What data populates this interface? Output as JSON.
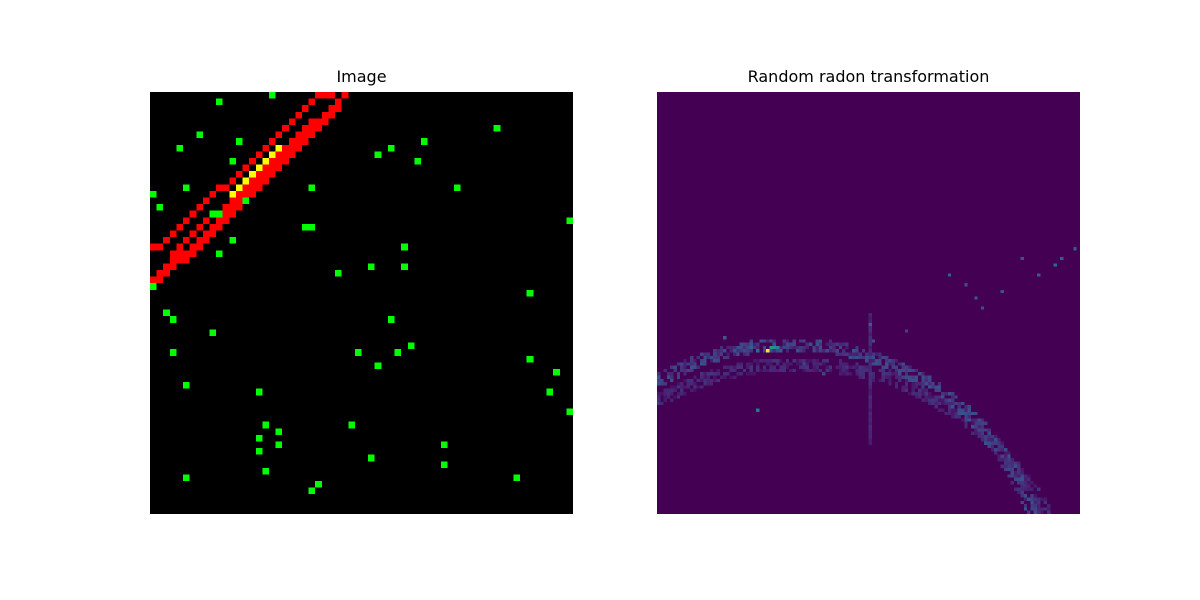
{
  "figure": {
    "titles": [
      "Image",
      "Random radon transformation"
    ]
  },
  "chart_data": [
    {
      "type": "heatmap",
      "title": "Image",
      "grid_size": [
        64,
        64
      ],
      "axes_visible": false,
      "colors": {
        "background": "#000000",
        "line_pixel": "#ff0000",
        "point_pixel": "#00ff00",
        "overlap_pixel": "#ffff00"
      },
      "line_band_1": [
        [
          0,
          28
        ],
        [
          1,
          27
        ],
        [
          2,
          26
        ],
        [
          3,
          25
        ],
        [
          4,
          24
        ],
        [
          5,
          24
        ],
        [
          6,
          23
        ],
        [
          7,
          22
        ],
        [
          8,
          21
        ],
        [
          9,
          20
        ],
        [
          10,
          19
        ],
        [
          11,
          18
        ],
        [
          12,
          17
        ],
        [
          13,
          16
        ],
        [
          14,
          15
        ],
        [
          15,
          14
        ],
        [
          16,
          13
        ],
        [
          17,
          12
        ],
        [
          18,
          11
        ],
        [
          19,
          10
        ],
        [
          20,
          9
        ],
        [
          21,
          8
        ],
        [
          22,
          7
        ],
        [
          23,
          6
        ],
        [
          24,
          5
        ],
        [
          25,
          4
        ],
        [
          26,
          3
        ],
        [
          27,
          2
        ],
        [
          28,
          1
        ],
        [
          29,
          0
        ]
      ],
      "line_band_2": [
        [
          0,
          29
        ],
        [
          1,
          28
        ],
        [
          2,
          27
        ],
        [
          3,
          26
        ],
        [
          4,
          25
        ],
        [
          5,
          25
        ],
        [
          6,
          24
        ],
        [
          7,
          23
        ],
        [
          8,
          22
        ],
        [
          9,
          21
        ],
        [
          10,
          20
        ],
        [
          11,
          19
        ],
        [
          12,
          18
        ],
        [
          13,
          17
        ],
        [
          14,
          16
        ],
        [
          15,
          15
        ],
        [
          16,
          14
        ],
        [
          17,
          13
        ],
        [
          18,
          12
        ],
        [
          19,
          11
        ],
        [
          20,
          10
        ],
        [
          21,
          9
        ],
        [
          22,
          8
        ],
        [
          23,
          7
        ],
        [
          24,
          6
        ],
        [
          25,
          5
        ],
        [
          26,
          4
        ],
        [
          27,
          3
        ],
        [
          28,
          2
        ]
      ],
      "line_band_3": [
        [
          0,
          23
        ],
        [
          1,
          23
        ],
        [
          2,
          22
        ],
        [
          3,
          21
        ],
        [
          4,
          20
        ],
        [
          5,
          19
        ],
        [
          6,
          18
        ],
        [
          7,
          17
        ],
        [
          8,
          16
        ],
        [
          9,
          15
        ],
        [
          10,
          14
        ],
        [
          11,
          14
        ],
        [
          12,
          13
        ],
        [
          13,
          12
        ],
        [
          14,
          11
        ],
        [
          15,
          10
        ],
        [
          16,
          9
        ],
        [
          17,
          8
        ],
        [
          18,
          7
        ],
        [
          19,
          6
        ],
        [
          20,
          5
        ],
        [
          21,
          4
        ],
        [
          22,
          3
        ],
        [
          23,
          2
        ],
        [
          24,
          1
        ],
        [
          25,
          0
        ],
        [
          26,
          0
        ],
        [
          27,
          0
        ]
      ],
      "line_band_4": [
        [
          3,
          24
        ],
        [
          4,
          23
        ],
        [
          5,
          22
        ],
        [
          6,
          21
        ],
        [
          7,
          20
        ],
        [
          8,
          19
        ],
        [
          9,
          18
        ],
        [
          10,
          18
        ],
        [
          11,
          17
        ],
        [
          12,
          16
        ],
        [
          13,
          15
        ],
        [
          14,
          14
        ],
        [
          15,
          13
        ],
        [
          16,
          12
        ],
        [
          17,
          11
        ],
        [
          18,
          10
        ],
        [
          19,
          9
        ],
        [
          20,
          8
        ],
        [
          21,
          7
        ],
        [
          22,
          6
        ],
        [
          23,
          5
        ],
        [
          24,
          4
        ]
      ],
      "overlap_points": [
        [
          12,
          15
        ],
        [
          13,
          14
        ],
        [
          14,
          13
        ],
        [
          15,
          12
        ],
        [
          16,
          11
        ],
        [
          17,
          10
        ],
        [
          18,
          9
        ],
        [
          19,
          8
        ]
      ],
      "points": [
        [
          0,
          29
        ],
        [
          0,
          15
        ],
        [
          1,
          17
        ],
        [
          2,
          33
        ],
        [
          3,
          34
        ],
        [
          4,
          8
        ],
        [
          3,
          39
        ],
        [
          5,
          44
        ],
        [
          5,
          58
        ],
        [
          5,
          14
        ],
        [
          7,
          6
        ],
        [
          9,
          18
        ],
        [
          9,
          36
        ],
        [
          10,
          1
        ],
        [
          10,
          24
        ],
        [
          10,
          18
        ],
        [
          12,
          10
        ],
        [
          12,
          22
        ],
        [
          13,
          7
        ],
        [
          14,
          16
        ],
        [
          15,
          12
        ],
        [
          16,
          45
        ],
        [
          16,
          52
        ],
        [
          18,
          0
        ],
        [
          16,
          54
        ],
        [
          17,
          50
        ],
        [
          17,
          57
        ],
        [
          19,
          51
        ],
        [
          19,
          53
        ],
        [
          23,
          20
        ],
        [
          24,
          14
        ],
        [
          24,
          60
        ],
        [
          24,
          20
        ],
        [
          25,
          59
        ],
        [
          28,
          27
        ],
        [
          30,
          50
        ],
        [
          31,
          39
        ],
        [
          33,
          26
        ],
        [
          33,
          55
        ],
        [
          34,
          41
        ],
        [
          36,
          34
        ],
        [
          34,
          9
        ],
        [
          37,
          39
        ],
        [
          39,
          38
        ],
        [
          36,
          8
        ],
        [
          38,
          26
        ],
        [
          38,
          23
        ],
        [
          41,
          7
        ],
        [
          40,
          10
        ],
        [
          44,
          53
        ],
        [
          44,
          56
        ],
        [
          46,
          14
        ],
        [
          52,
          5
        ],
        [
          55,
          58
        ],
        [
          57,
          30
        ],
        [
          57,
          40
        ],
        [
          60,
          45
        ],
        [
          61,
          42
        ],
        [
          63,
          48
        ],
        [
          63,
          19
        ]
      ]
    },
    {
      "type": "heatmap",
      "title": "Random radon transformation",
      "grid_size": [
        128,
        128
      ],
      "axes_visible": false,
      "colormap": "viridis",
      "background_value": 0,
      "peak": {
        "theta_index": 33,
        "rho_index": 78,
        "value": 1.0
      },
      "bright_pixels": [
        [
          34,
          77,
          0.55
        ],
        [
          35,
          77,
          0.5
        ],
        [
          36,
          77,
          0.45
        ],
        [
          30,
          78,
          0.35
        ],
        [
          28,
          77,
          0.3
        ],
        [
          37,
          78,
          0.3
        ],
        [
          20,
          74,
          0.3
        ],
        [
          30,
          96,
          0.4
        ],
        [
          64,
          70,
          0.3
        ],
        [
          65,
          75,
          0.25
        ],
        [
          88,
          55,
          0.3
        ],
        [
          93,
          58,
          0.25
        ],
        [
          96,
          62,
          0.3
        ],
        [
          110,
          50,
          0.25
        ],
        [
          115,
          55,
          0.3
        ],
        [
          120,
          52,
          0.35
        ],
        [
          122,
          50,
          0.3
        ],
        [
          126,
          47,
          0.3
        ],
        [
          98,
          65,
          0.25
        ],
        [
          104,
          60,
          0.25
        ],
        [
          44,
          82,
          0.2
        ],
        [
          50,
          85,
          0.2
        ],
        [
          75,
          72,
          0.2
        ]
      ],
      "arcs": [
        {
          "center": [
            40,
            154
          ],
          "radius": 78,
          "theta_range": [
            0,
            128
          ],
          "rho_range": [
            48,
            128
          ],
          "intensity": 0.2,
          "width": 4
        },
        {
          "center": [
            42,
            167
          ],
          "radius": 85,
          "theta_range": [
            0,
            128
          ],
          "rho_range": [
            70,
            128
          ],
          "intensity": 0.12,
          "width": 4
        },
        {
          "center": [
            38,
            140
          ],
          "radius": 70,
          "theta_range": [
            40,
            128
          ],
          "rho_range": [
            25,
            65
          ],
          "intensity": 0.13,
          "width": 3
        }
      ],
      "vertical_streak": {
        "theta_index": 64,
        "rho_range": [
          67,
          107
        ],
        "intensity": 0.12
      }
    }
  ]
}
